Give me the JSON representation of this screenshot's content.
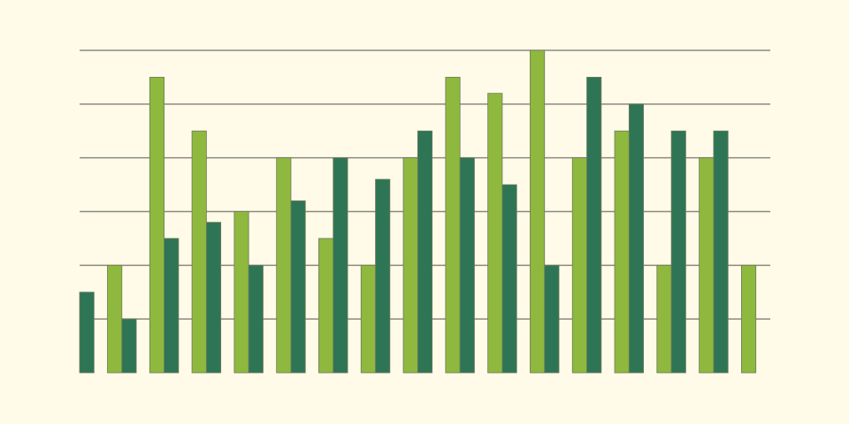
{
  "chart_data": {
    "type": "bar",
    "categories": [
      null,
      null,
      null,
      null,
      null,
      null,
      null,
      null,
      null,
      null,
      null,
      null,
      null,
      null,
      null,
      null,
      null
    ],
    "series": [
      {
        "color": "#8fb83e",
        "values": [
          null,
          2,
          5.5,
          4.5,
          3,
          4,
          2.5,
          2,
          4,
          5.5,
          5.2,
          6,
          4,
          4.5,
          2,
          4,
          2
        ]
      },
      {
        "color": "#2e7555",
        "values": [
          1.5,
          1,
          2.5,
          2.8,
          2,
          3.2,
          4,
          3.6,
          4.5,
          4,
          3.5,
          2,
          5.5,
          5,
          4.5,
          4.5,
          null
        ]
      }
    ],
    "ylim": [
      0,
      6
    ],
    "yticks": [
      1,
      2,
      3,
      4,
      5,
      6
    ],
    "grid": true
  }
}
